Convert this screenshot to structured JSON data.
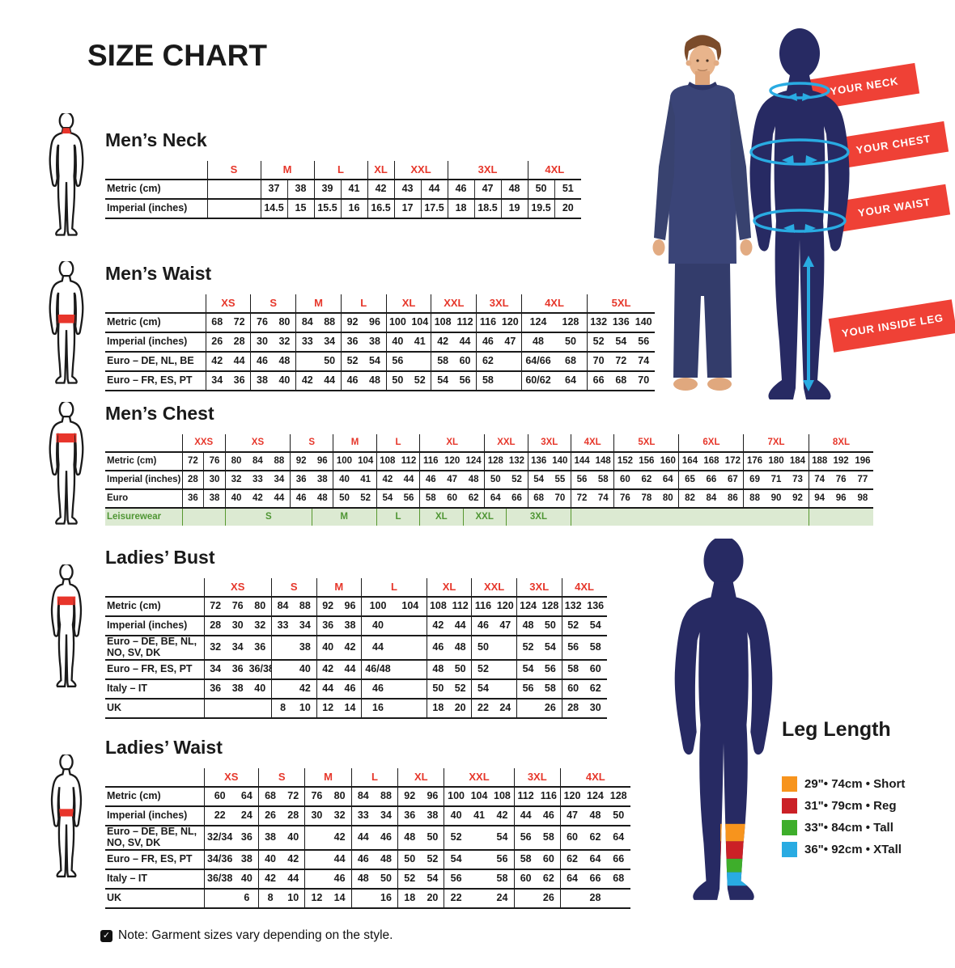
{
  "page": {
    "title": "SIZE CHART",
    "note": "Note: Garment sizes vary depending on the style."
  },
  "banners": [
    {
      "label": "YOUR NECK"
    },
    {
      "label": "YOUR CHEST"
    },
    {
      "label": "YOUR WAIST"
    },
    {
      "label": "YOUR INSIDE LEG"
    }
  ],
  "leg_length": {
    "title": "Leg Length",
    "items": [
      {
        "color": "#F7941D",
        "label": "29\"• 74cm • Short"
      },
      {
        "color": "#CB2026",
        "label": "31\"• 79cm • Reg"
      },
      {
        "color": "#3EAE2B",
        "label": "33\"• 84cm • Tall"
      },
      {
        "color": "#29ABE2",
        "label": "36\"• 92cm • XTall"
      }
    ]
  },
  "tables": [
    {
      "id": "mens-neck",
      "title": "Men’s Neck",
      "icon": "male-figure-neck-highlight-icon",
      "groups": [
        {
          "label": "S",
          "span": 1,
          "wide": 2,
          "div": true
        },
        {
          "label": "M",
          "span": 2,
          "div": true
        },
        {
          "label": "L",
          "span": 2,
          "div": true
        },
        {
          "label": "XL",
          "span": 1,
          "div": true
        },
        {
          "label": "XXL",
          "span": 2,
          "div": true
        },
        {
          "label": "3XL",
          "span": 3,
          "div": true
        },
        {
          "label": "4XL",
          "span": 2,
          "div": true
        }
      ],
      "rows": [
        {
          "label": "Metric (cm)",
          "cells": [
            "",
            "37",
            "38",
            "39",
            "41",
            "42",
            "43",
            "44",
            "46",
            "47",
            "48",
            "50",
            "51"
          ]
        },
        {
          "label": "Imperial (inches)",
          "cells": [
            "",
            "14.5",
            "15",
            "15.5",
            "16",
            "16.5",
            "17",
            "17.5",
            "18",
            "18.5",
            "19",
            "19.5",
            "20"
          ]
        }
      ]
    },
    {
      "id": "mens-waist",
      "title": "Men’s Waist",
      "icon": "male-figure-waist-highlight-icon",
      "groups": [
        {
          "label": "XS",
          "span": 2
        },
        {
          "label": "S",
          "span": 2
        },
        {
          "label": "M",
          "span": 2
        },
        {
          "label": "L",
          "span": 2
        },
        {
          "label": "XL",
          "span": 2
        },
        {
          "label": "XXL",
          "span": 2
        },
        {
          "label": "3XL",
          "span": 2
        },
        {
          "label": "4XL",
          "span": 2,
          "wide": 1.45
        },
        {
          "label": "5XL",
          "span": 3
        }
      ],
      "rows": [
        {
          "label": "Metric (cm)",
          "cells": [
            "68",
            "72",
            "76",
            "80",
            "84",
            "88",
            "92",
            "96",
            "100",
            "104",
            "108",
            "112",
            "116",
            "120",
            "124",
            "128",
            "132",
            "136",
            "140"
          ]
        },
        {
          "label": "Imperial (inches)",
          "cells": [
            "26",
            "28",
            "30",
            "32",
            "33",
            "34",
            "36",
            "38",
            "40",
            "41",
            "42",
            "44",
            "46",
            "47",
            "48",
            "50",
            "52",
            "54",
            "56"
          ]
        },
        {
          "label": "Euro – DE, NL, BE",
          "cells": [
            "42",
            "44",
            "46",
            "48",
            "",
            "50",
            "52",
            "54",
            "56",
            "",
            "58",
            "60",
            "62",
            "",
            "64/66",
            "68",
            "70",
            "72",
            "74"
          ]
        },
        {
          "label": "Euro – FR, ES, PT",
          "cells": [
            "34",
            "36",
            "38",
            "40",
            "42",
            "44",
            "46",
            "48",
            "50",
            "52",
            "54",
            "56",
            "58",
            "",
            "60/62",
            "64",
            "66",
            "68",
            "70"
          ]
        }
      ]
    },
    {
      "id": "mens-chest",
      "title": "Men’s Chest",
      "icon": "male-figure-chest-highlight-icon",
      "groups": [
        {
          "label": "XXS",
          "span": 2,
          "div": true
        },
        {
          "label": "XS",
          "span": 3
        },
        {
          "label": "S",
          "span": 2
        },
        {
          "label": "M",
          "span": 2
        },
        {
          "label": "L",
          "span": 2
        },
        {
          "label": "XL",
          "span": 3
        },
        {
          "label": "XXL",
          "span": 2
        },
        {
          "label": "3XL",
          "span": 2
        },
        {
          "label": "4XL",
          "span": 2
        },
        {
          "label": "5XL",
          "span": 3
        },
        {
          "label": "6XL",
          "span": 3
        },
        {
          "label": "7XL",
          "span": 3
        },
        {
          "label": "8XL",
          "span": 3
        }
      ],
      "rows": [
        {
          "label": "Metric (cm)",
          "cells": [
            "72",
            "76",
            "80",
            "84",
            "88",
            "92",
            "96",
            "100",
            "104",
            "108",
            "112",
            "116",
            "120",
            "124",
            "128",
            "132",
            "136",
            "140",
            "144",
            "148",
            "152",
            "156",
            "160",
            "164",
            "168",
            "172",
            "176",
            "180",
            "184",
            "188",
            "192",
            "196"
          ]
        },
        {
          "label": "Imperial (inches)",
          "cells": [
            "28",
            "30",
            "32",
            "33",
            "34",
            "36",
            "38",
            "40",
            "41",
            "42",
            "44",
            "46",
            "47",
            "48",
            "50",
            "52",
            "54",
            "55",
            "56",
            "58",
            "60",
            "62",
            "64",
            "65",
            "66",
            "67",
            "69",
            "71",
            "73",
            "74",
            "76",
            "77"
          ]
        },
        {
          "label": "Euro",
          "cells": [
            "36",
            "38",
            "40",
            "42",
            "44",
            "46",
            "48",
            "50",
            "52",
            "54",
            "56",
            "58",
            "60",
            "62",
            "64",
            "66",
            "68",
            "70",
            "72",
            "74",
            "76",
            "78",
            "80",
            "82",
            "84",
            "86",
            "88",
            "90",
            "92",
            "94",
            "96",
            "98"
          ]
        },
        {
          "label": "Leisurewear",
          "type": "leisure",
          "spans": [
            {
              "label": "",
              "span": 2
            },
            {
              "label": "S",
              "span": 4
            },
            {
              "label": "M",
              "span": 3
            },
            {
              "label": "L",
              "span": 2
            },
            {
              "label": "XL",
              "span": 2
            },
            {
              "label": "XXL",
              "span": 2
            },
            {
              "label": "3XL",
              "span": 3
            },
            {
              "label": "",
              "span": 11
            },
            {
              "label": "",
              "span": 3
            }
          ]
        }
      ]
    },
    {
      "id": "ladies-bust",
      "title": "Ladies’ Bust",
      "icon": "female-figure-bust-highlight-icon",
      "groups": [
        {
          "label": "XS",
          "span": 3
        },
        {
          "label": "S",
          "span": 2
        },
        {
          "label": "M",
          "span": 2
        },
        {
          "label": "L",
          "span": 2,
          "wide": 1.45
        },
        {
          "label": "XL",
          "span": 2
        },
        {
          "label": "XXL",
          "span": 2
        },
        {
          "label": "3XL",
          "span": 2
        },
        {
          "label": "4XL",
          "span": 2
        }
      ],
      "rows": [
        {
          "label": "Metric (cm)",
          "cells": [
            "72",
            "76",
            "80",
            "84",
            "88",
            "92",
            "96",
            "100",
            "104",
            "108",
            "112",
            "116",
            "120",
            "124",
            "128",
            "132",
            "136"
          ]
        },
        {
          "label": "Imperial (inches)",
          "cells": [
            "28",
            "30",
            "32",
            "33",
            "34",
            "36",
            "38",
            "40",
            "",
            "42",
            "44",
            "46",
            "47",
            "48",
            "50",
            "52",
            "54"
          ]
        },
        {
          "label": "Euro –  DE, BE, NL, NO, SV, DK",
          "cells": [
            "32",
            "34",
            "36",
            "",
            "38",
            "40",
            "42",
            "44",
            "",
            "46",
            "48",
            "50",
            "",
            "52",
            "54",
            "56",
            "58"
          ]
        },
        {
          "label": "Euro – FR, ES, PT",
          "cells": [
            "34",
            "36",
            "36/38",
            "",
            "40",
            "42",
            "44",
            "46/48",
            "",
            "48",
            "50",
            "52",
            "",
            "54",
            "56",
            "58",
            "60"
          ]
        },
        {
          "label": "Italy – IT",
          "cells": [
            "36",
            "38",
            "40",
            "",
            "42",
            "44",
            "46",
            "46",
            "",
            "50",
            "52",
            "54",
            "",
            "56",
            "58",
            "60",
            "62"
          ]
        },
        {
          "label": "UK",
          "cells": [
            "",
            "",
            "",
            "8",
            "10",
            "12",
            "14",
            "16",
            "",
            "18",
            "20",
            "22",
            "24",
            "",
            "26",
            "28",
            "30"
          ]
        }
      ]
    },
    {
      "id": "ladies-waist",
      "title": "Ladies’ Waist",
      "icon": "female-figure-waist-highlight-icon",
      "groups": [
        {
          "label": "XS",
          "span": 2,
          "wides": [
            1.35,
            1
          ]
        },
        {
          "label": "S",
          "span": 2
        },
        {
          "label": "M",
          "span": 2
        },
        {
          "label": "L",
          "span": 2
        },
        {
          "label": "XL",
          "span": 2
        },
        {
          "label": "XXL",
          "span": 3
        },
        {
          "label": "3XL",
          "span": 2
        },
        {
          "label": "4XL",
          "span": 3
        }
      ],
      "rows": [
        {
          "label": "Metric (cm)",
          "cells": [
            "60",
            "64",
            "68",
            "72",
            "76",
            "80",
            "84",
            "88",
            "92",
            "96",
            "100",
            "104",
            "108",
            "112",
            "116",
            "120",
            "124",
            "128"
          ]
        },
        {
          "label": "Imperial (inches)",
          "cells": [
            "22",
            "24",
            "26",
            "28",
            "30",
            "32",
            "33",
            "34",
            "36",
            "38",
            "40",
            "41",
            "42",
            "44",
            "46",
            "47",
            "48",
            "50"
          ]
        },
        {
          "label": "Euro – DE, BE, NL, NO, SV, DK",
          "cells": [
            "32/34",
            "36",
            "38",
            "40",
            "",
            "42",
            "44",
            "46",
            "48",
            "50",
            "52",
            "",
            "54",
            "56",
            "58",
            "60",
            "62",
            "64"
          ]
        },
        {
          "label": "Euro – FR, ES, PT",
          "cells": [
            "34/36",
            "38",
            "40",
            "42",
            "",
            "44",
            "46",
            "48",
            "50",
            "52",
            "54",
            "",
            "56",
            "58",
            "60",
            "62",
            "64",
            "66"
          ]
        },
        {
          "label": "Italy – IT",
          "cells": [
            "36/38",
            "40",
            "42",
            "44",
            "",
            "46",
            "48",
            "50",
            "52",
            "54",
            "56",
            "",
            "58",
            "60",
            "62",
            "64",
            "66",
            "68"
          ]
        },
        {
          "label": "UK",
          "cells": [
            "",
            "6",
            "8",
            "10",
            "12",
            "14",
            "",
            "16",
            "18",
            "20",
            "22",
            "",
            "24",
            "",
            "26",
            "",
            "28",
            ""
          ]
        }
      ]
    }
  ]
}
